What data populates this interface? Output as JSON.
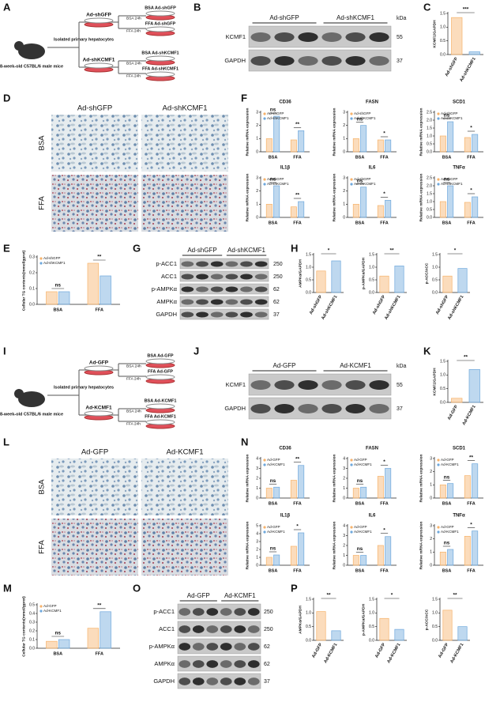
{
  "panels": {
    "A": {
      "letter": "A",
      "cells": "Isolated primary hepatocytes",
      "mice": "8-week-old C57BL/6 male mice",
      "arms": [
        {
          "virus": "Ad-shGFP",
          "treatments": [
            "BSA 24h",
            "FFA 24h"
          ],
          "results": [
            "BSA Ad-shGFP",
            "FFA Ad-shGFP"
          ]
        },
        {
          "virus": "Ad-shKCMF1",
          "treatments": [
            "BSA 24h",
            "FFA 24h"
          ],
          "results": [
            "BSA Ad-shKCMF1",
            "FFA Ad-shKCMF1"
          ]
        }
      ]
    },
    "B": {
      "letter": "B",
      "groups": [
        "Ad-shGFP",
        "Ad-shKCMF1"
      ],
      "unit": "kDa",
      "proteins": [
        {
          "name": "KCMF1",
          "kda": "55"
        },
        {
          "name": "GAPDH",
          "kda": "37"
        }
      ]
    },
    "C": {
      "letter": "C"
    },
    "D": {
      "letter": "D",
      "columns": [
        "Ad-shGFP",
        "Ad-shKCMF1"
      ],
      "rows": [
        "BSA",
        "FFA"
      ]
    },
    "E": {
      "letter": "E"
    },
    "F": {
      "letter": "F"
    },
    "G": {
      "letter": "G",
      "groups": [
        "Ad-shGFP",
        "Ad-shKCMF1"
      ],
      "proteins": [
        {
          "name": "p-ACC1",
          "kda": "250"
        },
        {
          "name": "ACC1",
          "kda": "250"
        },
        {
          "name": "p-AMPKα",
          "kda": "62"
        },
        {
          "name": "AMPKα",
          "kda": "62"
        },
        {
          "name": "GAPDH",
          "kda": "37"
        }
      ]
    },
    "H": {
      "letter": "H"
    },
    "I": {
      "letter": "I",
      "cells": "Isolated primary hepatocytes",
      "mice": "8-week-old C57BL/6 male mice",
      "arms": [
        {
          "virus": "Ad-GFP",
          "treatments": [
            "BSA 24h",
            "FFA 24h"
          ],
          "results": [
            "BSA Ad-GFP",
            "FFA Ad-GFP"
          ]
        },
        {
          "virus": "Ad-KCMF1",
          "treatments": [
            "BSA 24h",
            "FFA 24h"
          ],
          "results": [
            "BSA Ad-KCMF1",
            "FFA Ad-KCMF1"
          ]
        }
      ]
    },
    "J": {
      "letter": "J",
      "groups": [
        "Ad-GFP",
        "Ad-KCMF1"
      ],
      "unit": "kDa",
      "proteins": [
        {
          "name": "KCMF1",
          "kda": "55"
        },
        {
          "name": "GAPDH",
          "kda": "37"
        }
      ]
    },
    "K": {
      "letter": "K"
    },
    "L": {
      "letter": "L",
      "columns": [
        "Ad-GFP",
        "Ad-KCMF1"
      ],
      "rows": [
        "BSA",
        "FFA"
      ]
    },
    "M": {
      "letter": "M"
    },
    "N": {
      "letter": "N"
    },
    "O": {
      "letter": "O",
      "groups": [
        "Ad-GFP",
        "Ad-KCMF1"
      ],
      "proteins": [
        {
          "name": "p-ACC1",
          "kda": "250"
        },
        {
          "name": "ACC1",
          "kda": "250"
        },
        {
          "name": "p-AMPKα",
          "kda": "62"
        },
        {
          "name": "AMPKα",
          "kda": "62"
        },
        {
          "name": "GAPDH",
          "kda": "37"
        }
      ]
    },
    "P": {
      "letter": "P"
    }
  },
  "chart_data": [
    {
      "type": "bar",
      "ylabel": "KCMF1/GAPDH",
      "categories": [
        "Ad-shGFP",
        "Ad-shKCMF1"
      ],
      "values": [
        1.35,
        0.1
      ],
      "colors": [
        "#f6b26b",
        "#6fa8dc"
      ],
      "ylim": [
        0,
        1.5
      ],
      "yticks": [
        {
          "value": 0,
          "label": "0.0"
        },
        0.5,
        {
          "value": 1,
          "label": "1.0"
        },
        1.5
      ],
      "significance": "***"
    },
    {
      "type": "grouped_bar",
      "title": "CD36",
      "ylabel": "Relative mRNA expression",
      "categories": [
        "BSA",
        "FFA"
      ],
      "series": [
        {
          "name": "Ad-shGFP",
          "color": "#f6b26b",
          "values": [
            1.0,
            0.9
          ]
        },
        {
          "name": "Ad-shKCMF1",
          "color": "#6fa8dc",
          "values": [
            2.7,
            1.6
          ]
        }
      ],
      "ylim": [
        0,
        3
      ],
      "yticks": [
        0,
        1,
        2,
        3
      ],
      "significance": [
        "ns",
        "**"
      ]
    },
    {
      "type": "grouped_bar",
      "title": "FASN",
      "ylabel": "Relative mRNA expression",
      "categories": [
        "BSA",
        "FFA"
      ],
      "series": [
        {
          "name": "Ad-shGFP",
          "color": "#f6b26b",
          "values": [
            1.0,
            0.9
          ]
        },
        {
          "name": "Ad-shKCMF1",
          "color": "#6fa8dc",
          "values": [
            2.0,
            0.9
          ]
        }
      ],
      "ylim": [
        0,
        3
      ],
      "yticks": [
        0,
        1,
        2,
        3
      ],
      "significance": [
        "ns",
        "*"
      ]
    },
    {
      "type": "grouped_bar",
      "title": "SCD1",
      "ylabel": "Relative mRNA expression",
      "categories": [
        "BSA",
        "FFA"
      ],
      "series": [
        {
          "name": "Ad-shGFP",
          "color": "#f6b26b",
          "values": [
            1.0,
            0.9
          ]
        },
        {
          "name": "Ad-shKCMF1",
          "color": "#6fa8dc",
          "values": [
            1.9,
            1.1
          ]
        }
      ],
      "ylim": [
        0,
        2.5
      ],
      "yticks": [
        {
          "value": 0,
          "label": "0.0"
        },
        0.5,
        {
          "value": 1,
          "label": "1.0"
        },
        1.5,
        {
          "value": 2,
          "label": "2.0"
        },
        2.5
      ],
      "significance": [
        "ns",
        "*"
      ]
    },
    {
      "type": "grouped_bar",
      "title": "IL1β",
      "ylabel": "Relative mRNA expression",
      "categories": [
        "BSA",
        "FFA"
      ],
      "series": [
        {
          "name": "Ad-shGFP",
          "color": "#f6b26b",
          "values": [
            1.0,
            0.8
          ]
        },
        {
          "name": "Ad-shKCMF1",
          "color": "#6fa8dc",
          "values": [
            2.4,
            1.2
          ]
        }
      ],
      "ylim": [
        0,
        3
      ],
      "yticks": [
        0,
        1,
        2,
        3
      ],
      "significance": [
        "ns",
        "**"
      ]
    },
    {
      "type": "grouped_bar",
      "title": "IL6",
      "ylabel": "Relative mRNA expression",
      "categories": [
        "BSA",
        "FFA"
      ],
      "series": [
        {
          "name": "Ad-shGFP",
          "color": "#f6b26b",
          "values": [
            1.0,
            0.9
          ]
        },
        {
          "name": "Ad-shKCMF1",
          "color": "#6fa8dc",
          "values": [
            2.3,
            1.3
          ]
        }
      ],
      "ylim": [
        0,
        3
      ],
      "yticks": [
        0,
        1,
        2,
        3
      ],
      "significance": [
        "ns",
        "*"
      ]
    },
    {
      "type": "grouped_bar",
      "title": "TNFα",
      "ylabel": "Relative mRNA expression",
      "categories": [
        "BSA",
        "FFA"
      ],
      "series": [
        {
          "name": "Ad-shGFP",
          "color": "#f6b26b",
          "values": [
            1.0,
            0.95
          ]
        },
        {
          "name": "Ad-shKCMF1",
          "color": "#6fa8dc",
          "values": [
            2.0,
            1.3
          ]
        }
      ],
      "ylim": [
        0,
        2.5
      ],
      "yticks": [
        {
          "value": 0,
          "label": "0.0"
        },
        0.5,
        {
          "value": 1,
          "label": "1.0"
        },
        1.5,
        {
          "value": 2,
          "label": "2.0"
        },
        2.5
      ],
      "significance": [
        "ns",
        "*"
      ]
    },
    {
      "type": "grouped_bar",
      "ylabel": "Cellular TG contents(mmol/gprot)",
      "categories": [
        "BSA",
        "FFA"
      ],
      "series": [
        {
          "name": "Ad-shGFP",
          "color": "#f6b26b",
          "values": [
            0.08,
            0.26
          ]
        },
        {
          "name": "Ad-shKCMF1",
          "color": "#6fa8dc",
          "values": [
            0.08,
            0.18
          ]
        }
      ],
      "ylim": [
        0,
        0.3
      ],
      "yticks": [
        {
          "value": 0,
          "label": "0.0"
        },
        0.1,
        0.2,
        0.3
      ],
      "significance": [
        "ns",
        "**"
      ]
    },
    {
      "type": "bar",
      "ylabel": "AMPKα/GAPDH",
      "categories": [
        "Ad-shGFP",
        "Ad-shKCMF1"
      ],
      "values": [
        0.85,
        1.25
      ],
      "colors": [
        "#f6b26b",
        "#6fa8dc"
      ],
      "ylim": [
        0,
        1.5
      ],
      "yticks": [
        {
          "value": 0,
          "label": "0.0"
        },
        0.5,
        {
          "value": 1,
          "label": "1.0"
        },
        1.5
      ],
      "significance": "*"
    },
    {
      "type": "bar",
      "ylabel": "p-AMPKα/GAPDH",
      "categories": [
        "Ad-shGFP",
        "Ad-shKCMF1"
      ],
      "values": [
        0.65,
        1.05
      ],
      "colors": [
        "#f6b26b",
        "#6fa8dc"
      ],
      "ylim": [
        0,
        1.5
      ],
      "yticks": [
        {
          "value": 0,
          "label": "0.0"
        },
        0.5,
        {
          "value": 1,
          "label": "1.0"
        },
        1.5
      ],
      "significance": "**"
    },
    {
      "type": "bar",
      "ylabel": "p-ACC/ACC",
      "categories": [
        "Ad-shGFP",
        "Ad-shKCMF1"
      ],
      "values": [
        0.65,
        0.95
      ],
      "colors": [
        "#f6b26b",
        "#6fa8dc"
      ],
      "ylim": [
        0,
        1.5
      ],
      "yticks": [
        {
          "value": 0,
          "label": "0.0"
        },
        0.5,
        {
          "value": 1,
          "label": "1.0"
        },
        1.5
      ],
      "significance": "*"
    },
    {
      "type": "bar",
      "ylabel": "KCMF1/GAPDH",
      "categories": [
        "Ad-GFP",
        "Ad-KCMF1"
      ],
      "values": [
        0.15,
        1.2
      ],
      "colors": [
        "#f6b26b",
        "#6fa8dc"
      ],
      "ylim": [
        0,
        1.5
      ],
      "yticks": [
        {
          "value": 0,
          "label": "0.0"
        },
        0.5,
        {
          "value": 1,
          "label": "1.0"
        },
        1.5
      ],
      "significance": "**"
    },
    {
      "type": "grouped_bar",
      "title": "CD36",
      "ylabel": "Relative mRNA expression",
      "categories": [
        "BSA",
        "FFA"
      ],
      "series": [
        {
          "name": "Ad-GFP",
          "color": "#f6b26b",
          "values": [
            1.0,
            1.8
          ]
        },
        {
          "name": "Ad-KCMF1",
          "color": "#6fa8dc",
          "values": [
            1.1,
            3.3
          ]
        }
      ],
      "ylim": [
        0,
        4
      ],
      "yticks": [
        0,
        1,
        2,
        3,
        4
      ],
      "significance": [
        "ns",
        "**"
      ]
    },
    {
      "type": "grouped_bar",
      "title": "FASN",
      "ylabel": "Relative mRNA expression",
      "categories": [
        "BSA",
        "FFA"
      ],
      "series": [
        {
          "name": "Ad-GFP",
          "color": "#f6b26b",
          "values": [
            1.0,
            2.2
          ]
        },
        {
          "name": "Ad-KCMF1",
          "color": "#6fa8dc",
          "values": [
            1.1,
            3.0
          ]
        }
      ],
      "ylim": [
        0,
        4
      ],
      "yticks": [
        0,
        1,
        2,
        3,
        4
      ],
      "significance": [
        "ns",
        "*"
      ]
    },
    {
      "type": "grouped_bar",
      "title": "SCD1",
      "ylabel": "Relative mRNA expression",
      "categories": [
        "BSA",
        "FFA"
      ],
      "series": [
        {
          "name": "Ad-GFP",
          "color": "#f6b26b",
          "values": [
            1.0,
            1.7
          ]
        },
        {
          "name": "Ad-KCMF1",
          "color": "#6fa8dc",
          "values": [
            1.1,
            2.6
          ]
        }
      ],
      "ylim": [
        0,
        3
      ],
      "yticks": [
        0,
        1,
        2,
        3
      ],
      "significance": [
        "ns",
        "**"
      ]
    },
    {
      "type": "grouped_bar",
      "title": "IL1β",
      "ylabel": "Relative mRNA expression",
      "categories": [
        "BSA",
        "FFA"
      ],
      "series": [
        {
          "name": "Ad-GFP",
          "color": "#f6b26b",
          "values": [
            1.0,
            2.4
          ]
        },
        {
          "name": "Ad-KCMF1",
          "color": "#6fa8dc",
          "values": [
            1.3,
            4.1
          ]
        }
      ],
      "ylim": [
        0,
        5
      ],
      "yticks": [
        0,
        1,
        2,
        3,
        4,
        5
      ],
      "significance": [
        "ns",
        "*"
      ]
    },
    {
      "type": "grouped_bar",
      "title": "IL6",
      "ylabel": "Relative mRNA expression",
      "categories": [
        "BSA",
        "FFA"
      ],
      "series": [
        {
          "name": "Ad-GFP",
          "color": "#f6b26b",
          "values": [
            1.0,
            2.0
          ]
        },
        {
          "name": "Ad-KCMF1",
          "color": "#6fa8dc",
          "values": [
            1.0,
            2.9
          ]
        }
      ],
      "ylim": [
        0,
        4
      ],
      "yticks": [
        0,
        1,
        2,
        3,
        4
      ],
      "significance": [
        "ns",
        "*"
      ]
    },
    {
      "type": "grouped_bar",
      "title": "TNFα",
      "ylabel": "Relative mRNA expression",
      "categories": [
        "BSA",
        "FFA"
      ],
      "series": [
        {
          "name": "Ad-GFP",
          "color": "#f6b26b",
          "values": [
            1.0,
            2.2
          ]
        },
        {
          "name": "Ad-KCMF1",
          "color": "#6fa8dc",
          "values": [
            1.2,
            2.6
          ]
        }
      ],
      "ylim": [
        0,
        3
      ],
      "yticks": [
        0,
        1,
        2,
        3
      ],
      "significance": [
        "ns",
        "*"
      ]
    },
    {
      "type": "grouped_bar",
      "ylabel": "Cellular TG contents(mmol/gprot)",
      "categories": [
        "BSA",
        "FFA"
      ],
      "series": [
        {
          "name": "Ad-GFP",
          "color": "#f6b26b",
          "values": [
            0.08,
            0.23
          ]
        },
        {
          "name": "Ad-KCMF1",
          "color": "#6fa8dc",
          "values": [
            0.1,
            0.42
          ]
        }
      ],
      "ylim": [
        0,
        0.5
      ],
      "yticks": [
        {
          "value": 0,
          "label": "0.0"
        },
        0.1,
        0.2,
        0.3,
        0.4,
        0.5
      ],
      "significance": [
        "ns",
        "**"
      ]
    },
    {
      "type": "bar",
      "ylabel": "AMPKα/GAPDH",
      "categories": [
        "Ad-GFP",
        "Ad-KCMF1"
      ],
      "values": [
        1.05,
        0.35
      ],
      "colors": [
        "#f6b26b",
        "#6fa8dc"
      ],
      "ylim": [
        0,
        1.5
      ],
      "yticks": [
        {
          "value": 0,
          "label": "0.0"
        },
        0.5,
        {
          "value": 1,
          "label": "1.0"
        },
        1.5
      ],
      "significance": "**"
    },
    {
      "type": "bar",
      "ylabel": "p-AMPKα/GAPDH",
      "categories": [
        "Ad-GFP",
        "Ad-KCMF1"
      ],
      "values": [
        0.8,
        0.4
      ],
      "colors": [
        "#f6b26b",
        "#6fa8dc"
      ],
      "ylim": [
        0,
        1.5
      ],
      "yticks": [
        {
          "value": 0,
          "label": "0.0"
        },
        0.5,
        {
          "value": 1,
          "label": "1.0"
        },
        1.5
      ],
      "significance": "*"
    },
    {
      "type": "bar",
      "ylabel": "p-ACC/ACC",
      "categories": [
        "Ad-GFP",
        "Ad-KCMF1"
      ],
      "values": [
        1.1,
        0.5
      ],
      "colors": [
        "#f6b26b",
        "#6fa8dc"
      ],
      "ylim": [
        0,
        1.5
      ],
      "yticks": [
        {
          "value": 0,
          "label": "0.0"
        },
        0.5,
        {
          "value": 1,
          "label": "1.0"
        },
        1.5
      ],
      "significance": "**"
    }
  ]
}
